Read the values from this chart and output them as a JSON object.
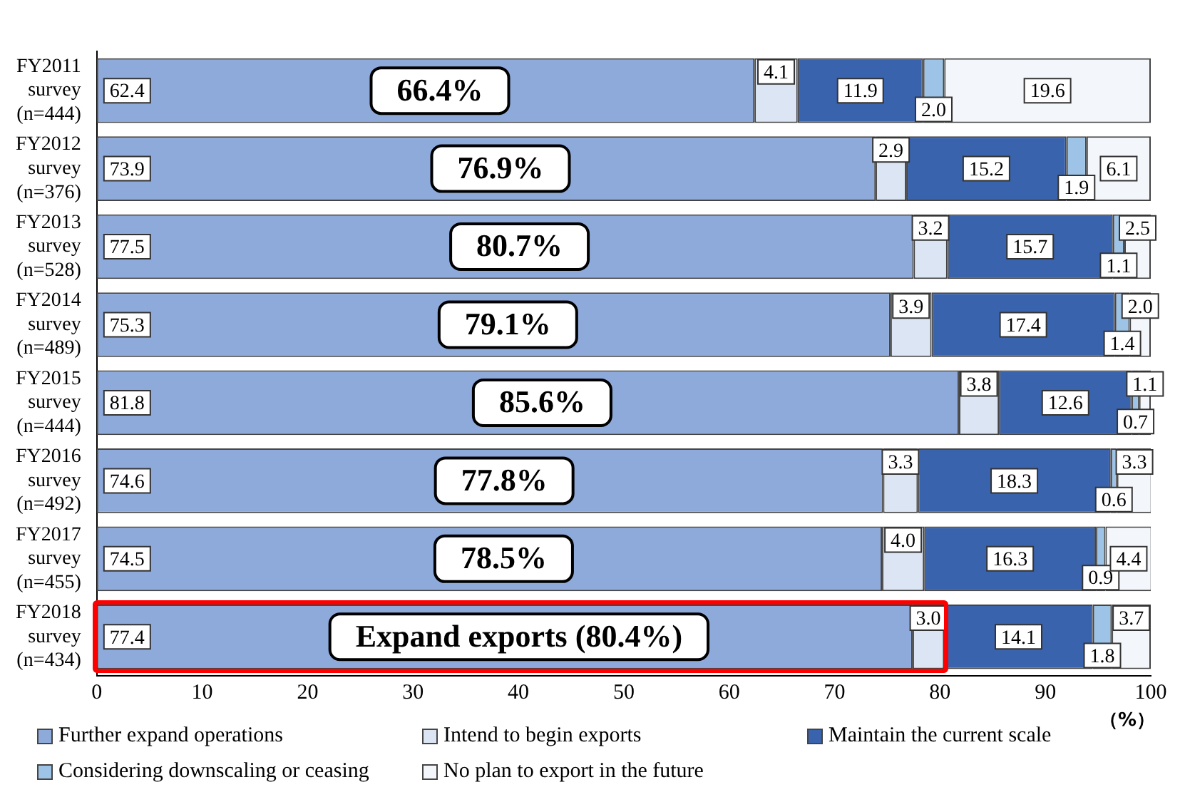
{
  "chart_data": {
    "type": "bar",
    "orientation": "horizontal",
    "stacked": true,
    "categories": [
      "FY2011 survey (n=444)",
      "FY2012 survey (n=376)",
      "FY2013 survey (n=528)",
      "FY2014 survey (n=489)",
      "FY2015 survey (n=444)",
      "FY2016 survey (n=492)",
      "FY2017 survey (n=455)",
      "FY2018 survey (n=434)"
    ],
    "series": [
      {
        "name": "Further expand operations",
        "color": "#8eaadb",
        "values": [
          62.4,
          73.9,
          77.5,
          75.3,
          81.8,
          74.6,
          74.5,
          77.4
        ],
        "value_labels": [
          "62.4",
          "73.9",
          "77.5",
          "75.3",
          "81.8",
          "74.6",
          "74.5",
          "77.4"
        ]
      },
      {
        "name": "Intend to begin exports",
        "color": "#dbe5f3",
        "values": [
          4.1,
          2.9,
          3.2,
          3.9,
          3.8,
          3.3,
          4.0,
          3.0
        ],
        "value_labels": [
          "4.1",
          "2.9",
          "3.2",
          "3.9",
          "3.8",
          "3.3",
          "4.0",
          "3.0"
        ]
      },
      {
        "name": "Maintain the current scale",
        "color": "#3a63ad",
        "values": [
          11.9,
          15.2,
          15.7,
          17.4,
          12.6,
          18.3,
          16.3,
          14.1
        ],
        "value_labels": [
          "11.9",
          "15.2",
          "15.7",
          "17.4",
          "12.6",
          "18.3",
          "16.3",
          "14.1"
        ]
      },
      {
        "name": "Considering downscaling or ceasing",
        "color": "#9dc3e6",
        "values": [
          2.0,
          1.9,
          1.1,
          1.4,
          0.7,
          0.6,
          0.9,
          1.8
        ],
        "value_labels": [
          "2.0",
          "1.9",
          "1.1",
          "1.4",
          "0.7",
          "0.6",
          "0.9",
          "1.8"
        ]
      },
      {
        "name": "No plan to export in the future",
        "color": "#f3f6fb",
        "values": [
          19.6,
          6.1,
          2.5,
          2.0,
          1.1,
          3.3,
          4.4,
          3.7
        ],
        "value_labels": [
          "19.6",
          "6.1",
          "2.5",
          "2.0",
          "1.1",
          "3.3",
          "4.4",
          "3.7"
        ]
      }
    ],
    "xlim": [
      0,
      100
    ],
    "xticks": [
      0,
      10,
      20,
      30,
      40,
      50,
      60,
      70,
      80,
      90,
      100
    ],
    "xlabel": "（%）",
    "annotations": [
      "66.4%",
      "76.9%",
      "80.7%",
      "79.1%",
      "85.6%",
      "77.8%",
      "78.5%",
      "Expand exports (80.4%)"
    ],
    "grid": false,
    "legend": "bottom"
  }
}
